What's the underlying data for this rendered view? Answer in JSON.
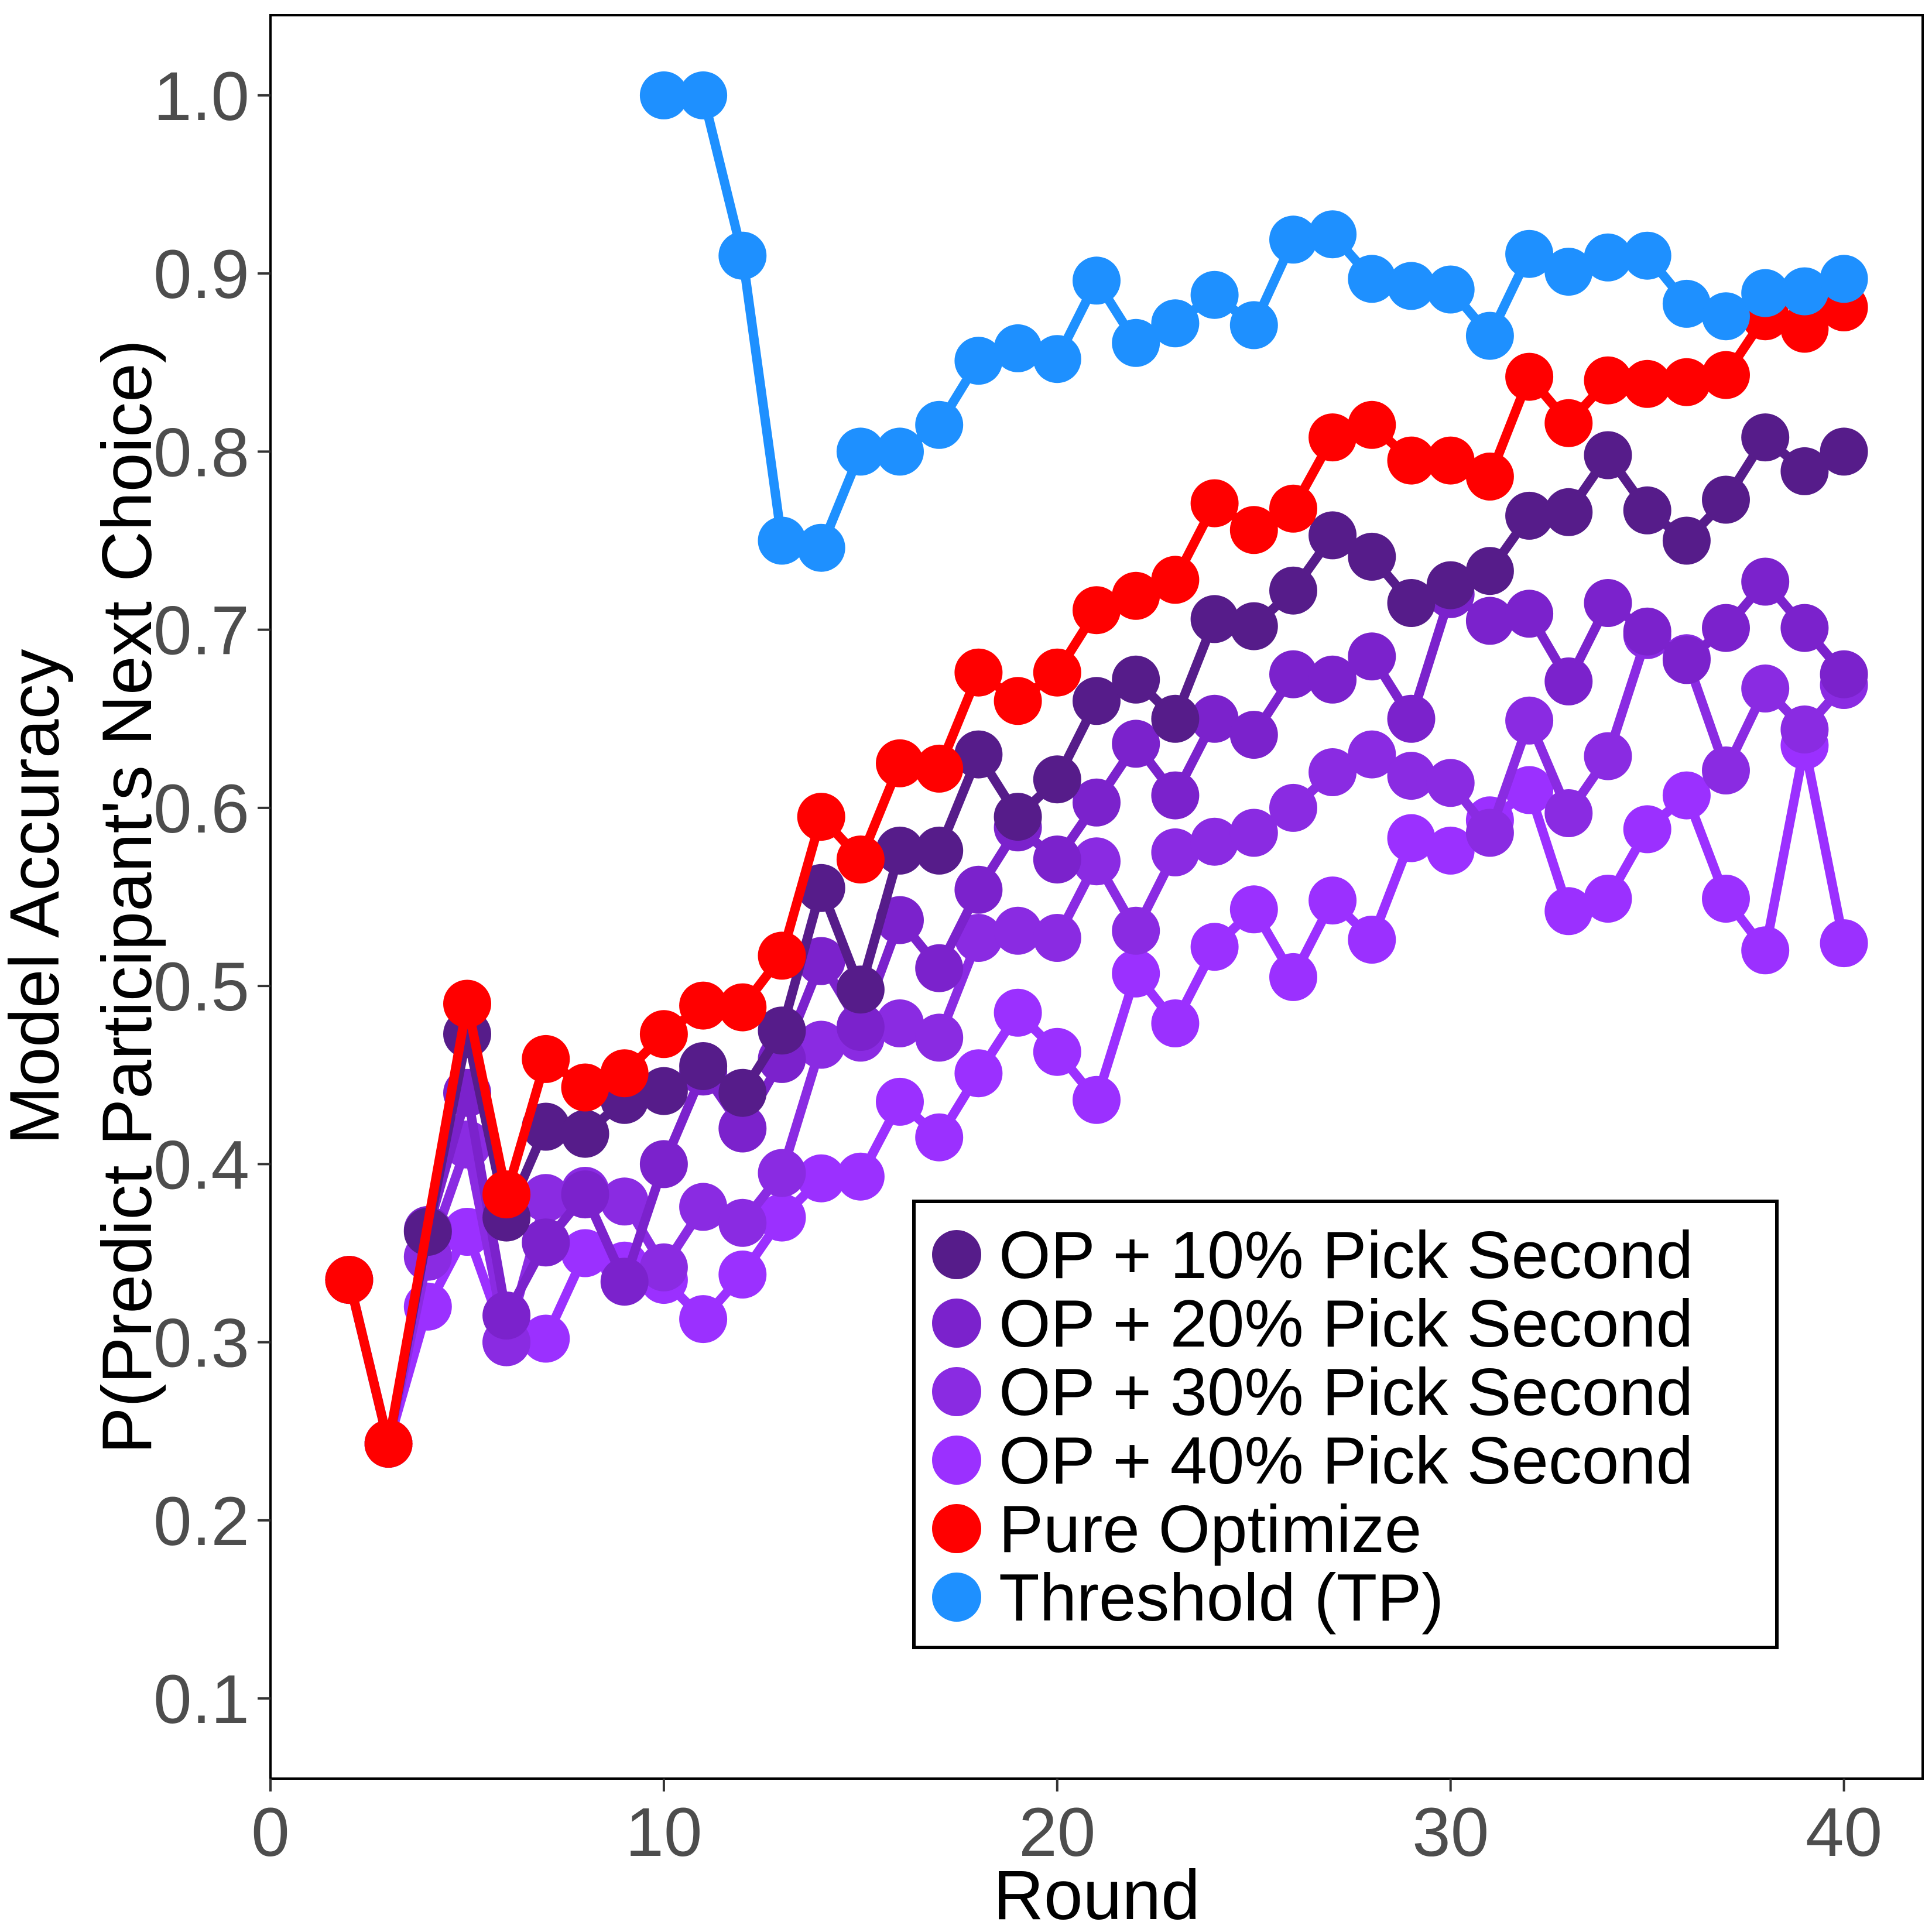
{
  "chart_data": {
    "type": "line",
    "xlabel": "Round",
    "ylabel_lines": [
      "Model Accuracy",
      "P(Predict Participant's Next Choice)"
    ],
    "xlim": [
      0,
      42
    ],
    "ylim": [
      0.055,
      1.045
    ],
    "x_ticks": [
      {
        "value": 0,
        "label": "0"
      },
      {
        "value": 10,
        "label": "10"
      },
      {
        "value": 20,
        "label": "20"
      },
      {
        "value": 30,
        "label": "30"
      },
      {
        "value": 40,
        "label": "40"
      }
    ],
    "y_ticks": [
      {
        "value": 0.1,
        "label": "0.1"
      },
      {
        "value": 0.2,
        "label": "0.2"
      },
      {
        "value": 0.3,
        "label": "0.3"
      },
      {
        "value": 0.4,
        "label": "0.4"
      },
      {
        "value": 0.5,
        "label": "0.5"
      },
      {
        "value": 0.6,
        "label": "0.6"
      },
      {
        "value": 0.7,
        "label": "0.7"
      },
      {
        "value": 0.8,
        "label": "0.8"
      },
      {
        "value": 0.9,
        "label": "0.9"
      },
      {
        "value": 1.0,
        "label": "1.0"
      }
    ],
    "grid": false,
    "legend_position": "bottom-right",
    "series": [
      {
        "name": "OP + 40% Pick Second",
        "color": "#9B30FF",
        "x": [
          2,
          3,
          4,
          5,
          6,
          7,
          8,
          9,
          10,
          11,
          12,
          13,
          14,
          15,
          16,
          17,
          18,
          19,
          20,
          21,
          22,
          23,
          24,
          25,
          26,
          27,
          28,
          29,
          30,
          31,
          32,
          33,
          34,
          35,
          36,
          37,
          38,
          39,
          40
        ],
        "y": [
          0.335,
          0.243,
          0.32,
          0.362,
          0.3,
          0.302,
          0.35,
          0.343,
          0.335,
          0.313,
          0.338,
          0.37,
          0.392,
          0.393,
          0.435,
          0.415,
          0.451,
          0.485,
          0.463,
          0.436,
          0.507,
          0.479,
          0.522,
          0.543,
          0.505,
          0.548,
          0.526,
          0.583,
          0.576,
          0.593,
          0.61,
          0.542,
          0.549,
          0.588,
          0.607,
          0.549,
          0.52,
          0.635,
          0.524
        ]
      },
      {
        "name": "OP + 30% Pick Second",
        "color": "#8A2BE2",
        "x": [
          2,
          3,
          4,
          5,
          6,
          7,
          8,
          9,
          10,
          11,
          12,
          13,
          14,
          15,
          16,
          17,
          18,
          19,
          20,
          21,
          22,
          23,
          24,
          25,
          26,
          27,
          28,
          29,
          30,
          31,
          32,
          33,
          34,
          35,
          36,
          37,
          38,
          39,
          40
        ],
        "y": [
          0.335,
          0.243,
          0.348,
          0.411,
          0.3,
          0.381,
          0.385,
          0.379,
          0.342,
          0.376,
          0.367,
          0.395,
          0.467,
          0.471,
          0.479,
          0.471,
          0.527,
          0.531,
          0.527,
          0.57,
          0.531,
          0.575,
          0.581,
          0.586,
          0.6,
          0.62,
          0.63,
          0.618,
          0.614,
          0.586,
          0.649,
          0.597,
          0.629,
          0.697,
          0.684,
          0.621,
          0.667,
          0.644,
          0.669
        ]
      },
      {
        "name": "OP + 20% Pick Second",
        "color": "#7B22CC",
        "x": [
          2,
          3,
          4,
          5,
          6,
          7,
          8,
          9,
          10,
          11,
          12,
          13,
          14,
          15,
          16,
          17,
          18,
          19,
          20,
          21,
          22,
          23,
          24,
          25,
          26,
          27,
          28,
          29,
          30,
          31,
          32,
          33,
          34,
          35,
          36,
          37,
          38,
          39,
          40
        ],
        "y": [
          0.335,
          0.243,
          0.363,
          0.44,
          0.315,
          0.356,
          0.383,
          0.334,
          0.4,
          0.452,
          0.42,
          0.459,
          0.514,
          0.477,
          0.537,
          0.51,
          0.554,
          0.589,
          0.571,
          0.603,
          0.636,
          0.607,
          0.65,
          0.641,
          0.675,
          0.672,
          0.685,
          0.65,
          0.72,
          0.705,
          0.709,
          0.671,
          0.715,
          0.699,
          0.683,
          0.701,
          0.727,
          0.701,
          0.675
        ]
      },
      {
        "name": "OP + 10% Pick Second",
        "color": "#561C8A",
        "x": [
          2,
          3,
          4,
          5,
          6,
          7,
          8,
          9,
          10,
          11,
          12,
          13,
          14,
          15,
          16,
          17,
          18,
          19,
          20,
          21,
          22,
          23,
          24,
          25,
          26,
          27,
          28,
          29,
          30,
          31,
          32,
          33,
          34,
          35,
          36,
          37,
          38,
          39,
          40
        ],
        "y": [
          0.335,
          0.243,
          0.362,
          0.473,
          0.37,
          0.421,
          0.417,
          0.436,
          0.441,
          0.455,
          0.44,
          0.475,
          0.555,
          0.498,
          0.576,
          0.576,
          0.63,
          0.595,
          0.616,
          0.66,
          0.672,
          0.65,
          0.706,
          0.702,
          0.722,
          0.753,
          0.741,
          0.715,
          0.725,
          0.733,
          0.764,
          0.766,
          0.798,
          0.767,
          0.75,
          0.773,
          0.808,
          0.789,
          0.8
        ]
      },
      {
        "name": "Pure Optimize",
        "color": "#FF0000",
        "x": [
          2,
          3,
          5,
          6,
          7,
          8,
          9,
          10,
          11,
          12,
          13,
          14,
          15,
          16,
          17,
          18,
          19,
          20,
          21,
          22,
          23,
          24,
          25,
          26,
          27,
          28,
          29,
          30,
          31,
          32,
          33,
          34,
          35,
          36,
          37,
          38,
          39,
          40
        ],
        "y": [
          0.335,
          0.243,
          0.49,
          0.383,
          0.459,
          0.443,
          0.451,
          0.473,
          0.489,
          0.488,
          0.517,
          0.595,
          0.571,
          0.625,
          0.622,
          0.676,
          0.66,
          0.676,
          0.711,
          0.719,
          0.728,
          0.771,
          0.756,
          0.768,
          0.808,
          0.815,
          0.795,
          0.795,
          0.786,
          0.842,
          0.816,
          0.84,
          0.838,
          0.839,
          0.843,
          0.876,
          0.869,
          0.881
        ]
      },
      {
        "name": "Threshold (TP)",
        "color": "#1E90FF",
        "x": [
          10,
          11,
          12,
          13,
          14,
          15,
          16,
          17,
          18,
          19,
          20,
          21,
          22,
          23,
          24,
          25,
          26,
          27,
          28,
          29,
          30,
          31,
          32,
          33,
          34,
          35,
          36,
          37,
          38,
          39,
          40
        ],
        "y": [
          1.0,
          1.0,
          0.91,
          0.75,
          0.746,
          0.8,
          0.8,
          0.815,
          0.851,
          0.858,
          0.852,
          0.896,
          0.861,
          0.872,
          0.888,
          0.871,
          0.919,
          0.922,
          0.897,
          0.893,
          0.891,
          0.865,
          0.911,
          0.901,
          0.909,
          0.91,
          0.883,
          0.876,
          0.889,
          0.89,
          0.897
        ]
      }
    ],
    "legend_order": [
      "OP + 10% Pick Second",
      "OP + 20% Pick Second",
      "OP + 30% Pick Second",
      "OP + 40% Pick Second",
      "Pure Optimize",
      "Threshold (TP)"
    ]
  }
}
